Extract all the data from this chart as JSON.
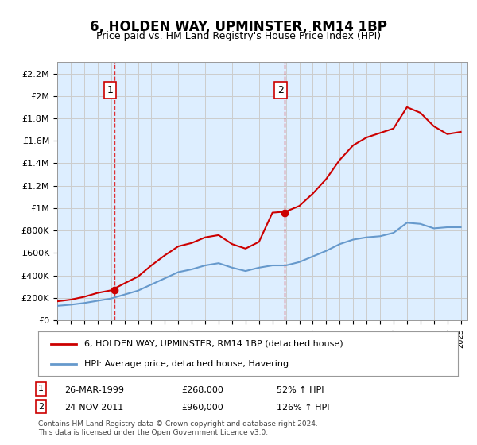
{
  "title": "6, HOLDEN WAY, UPMINSTER, RM14 1BP",
  "subtitle": "Price paid vs. HM Land Registry's House Price Index (HPI)",
  "legend_line1": "6, HOLDEN WAY, UPMINSTER, RM14 1BP (detached house)",
  "legend_line2": "HPI: Average price, detached house, Havering",
  "footnote": "Contains HM Land Registry data © Crown copyright and database right 2024.\nThis data is licensed under the Open Government Licence v3.0.",
  "sale1_label": "1",
  "sale1_date": "26-MAR-1999",
  "sale1_price": 268000,
  "sale1_hpi_pct": "52% ↑ HPI",
  "sale1_x": 1999.23,
  "sale2_label": "2",
  "sale2_date": "24-NOV-2011",
  "sale2_price": 960000,
  "sale2_hpi_pct": "126% ↑ HPI",
  "sale2_x": 2011.9,
  "red_color": "#cc0000",
  "blue_color": "#6699cc",
  "background_color": "#ddeeff",
  "plot_bg": "#ffffff",
  "grid_color": "#cccccc",
  "dashed_color": "#dd0000",
  "ylim": [
    0,
    2300000
  ],
  "xlim": [
    1995,
    2025.5
  ],
  "hpi_years": [
    1995,
    1996,
    1997,
    1998,
    1999,
    2000,
    2001,
    2002,
    2003,
    2004,
    2005,
    2006,
    2007,
    2008,
    2009,
    2010,
    2011,
    2012,
    2013,
    2014,
    2015,
    2016,
    2017,
    2018,
    2019,
    2020,
    2021,
    2022,
    2023,
    2024,
    2025
  ],
  "hpi_values": [
    130000,
    140000,
    155000,
    175000,
    195000,
    230000,
    265000,
    320000,
    375000,
    430000,
    455000,
    490000,
    510000,
    470000,
    440000,
    470000,
    490000,
    490000,
    520000,
    570000,
    620000,
    680000,
    720000,
    740000,
    750000,
    780000,
    870000,
    860000,
    820000,
    830000,
    830000
  ],
  "red_years": [
    1995,
    1996,
    1997,
    1998,
    1999,
    2000,
    2001,
    2002,
    2003,
    2004,
    2005,
    2006,
    2007,
    2008,
    2009,
    2010,
    2011,
    2012,
    2013,
    2014,
    2015,
    2016,
    2017,
    2018,
    2019,
    2020,
    2021,
    2022,
    2023,
    2024,
    2025
  ],
  "red_values": [
    170000,
    185000,
    210000,
    245000,
    268000,
    330000,
    390000,
    490000,
    580000,
    660000,
    690000,
    740000,
    760000,
    680000,
    640000,
    700000,
    960000,
    970000,
    1020000,
    1130000,
    1260000,
    1430000,
    1560000,
    1630000,
    1670000,
    1710000,
    1900000,
    1850000,
    1730000,
    1660000,
    1680000
  ]
}
